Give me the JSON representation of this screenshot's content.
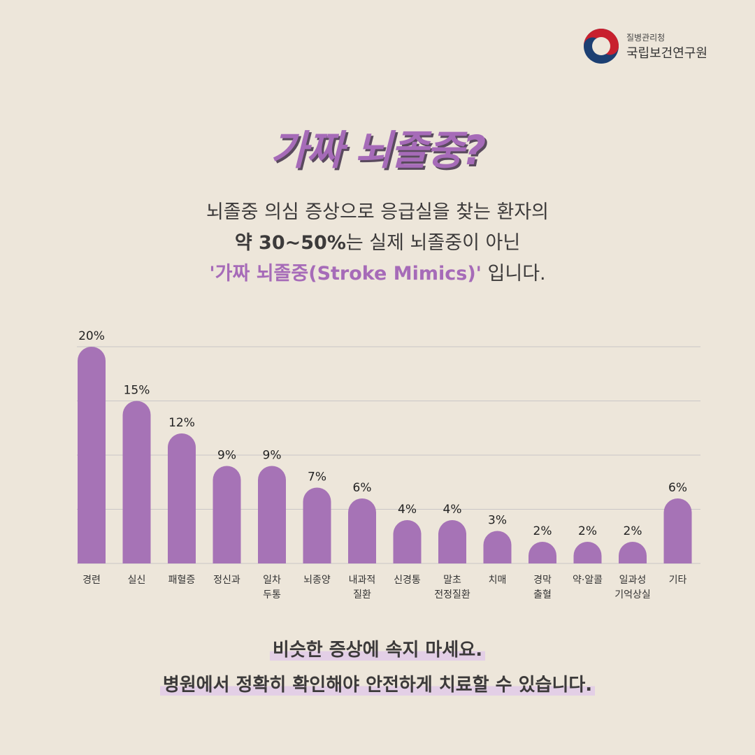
{
  "logo": {
    "line1": "질병관리청",
    "line2": "국립보건연구원"
  },
  "title": "가짜 뇌졸중?",
  "subtitle": {
    "line1": "뇌졸중 의심 증상으로 응급실을 찾는 환자의",
    "line2_bold": "약 30~50%",
    "line2_rest": "는 실제 뇌졸중이 아닌",
    "line3_highlight": "'가짜 뇌졸중(Stroke Mimics)'",
    "line3_rest": " 입니다."
  },
  "footer": {
    "line1": "비슷한 증상에 속지 마세요.",
    "line2": "병원에서 정확히 확인해야 안전하게 치료할 수 있습니다."
  },
  "colors": {
    "bar": "#a673b6",
    "title": "#a66bb8",
    "grid": "#c9c6c6"
  },
  "chart_data": {
    "type": "bar",
    "categories": [
      "경련",
      "실신",
      "패혈증",
      "정신과",
      "일차\n두통",
      "뇌종양",
      "내과적\n질환",
      "신경통",
      "말초\n전정질환",
      "치매",
      "경막\n출혈",
      "약·알콜",
      "일과성\n기억상실",
      "기타"
    ],
    "values": [
      20,
      15,
      12,
      9,
      9,
      7,
      6,
      4,
      4,
      3,
      2,
      2,
      2,
      6
    ],
    "data_labels": [
      "20%",
      "15%",
      "12%",
      "9%",
      "9%",
      "7%",
      "6%",
      "4%",
      "4%",
      "3%",
      "2%",
      "2%",
      "2%",
      "6%"
    ],
    "ylim": [
      0,
      20
    ],
    "grid": true,
    "yticks_visible": false
  }
}
